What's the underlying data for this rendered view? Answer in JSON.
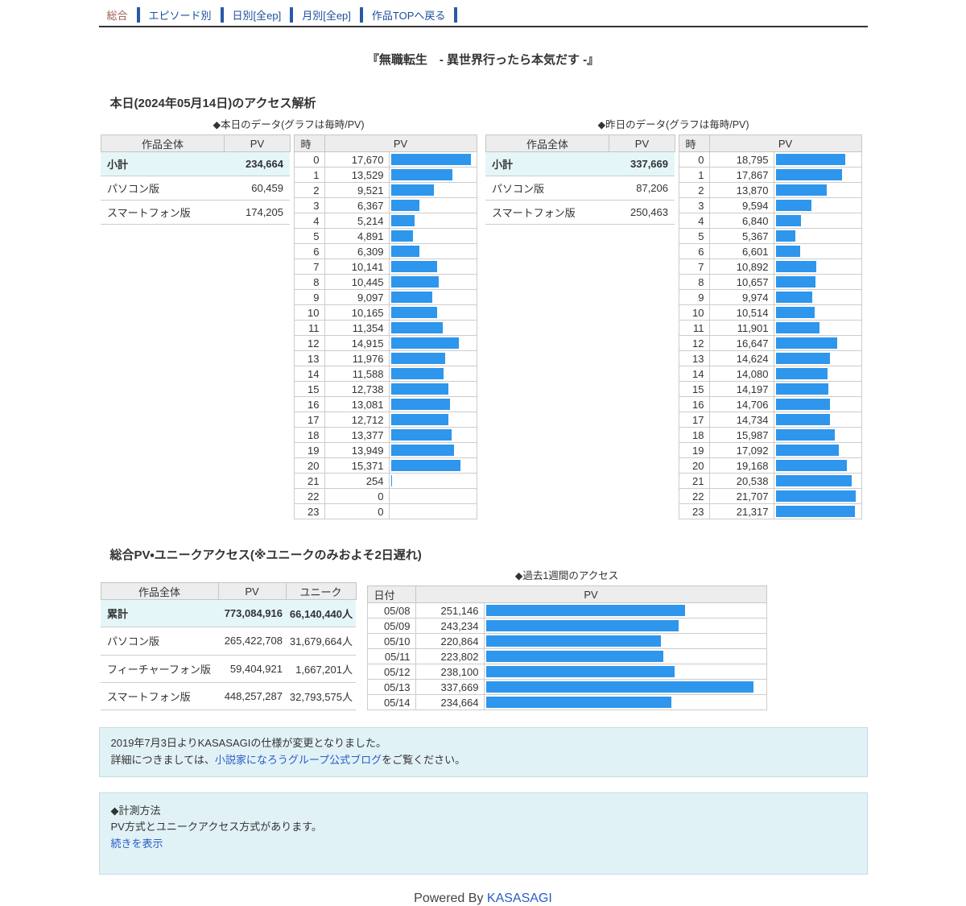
{
  "nav": {
    "items": [
      {
        "label": "総合",
        "active": true
      },
      {
        "label": "エピソード別",
        "active": false
      },
      {
        "label": "日別[全ep]",
        "active": false
      },
      {
        "label": "月別[全ep]",
        "active": false
      },
      {
        "label": "作品TOPへ戻る",
        "active": false
      }
    ]
  },
  "page_title": "『無職転生　- 異世界行ったら本気だす -』",
  "today_section": {
    "heading": "本日(2024年05月14日)のアクセス解析"
  },
  "colors": {
    "bar_blue": "#2e96ec",
    "link_blue": "#1b4e9b",
    "active_nav": "#9d5a50",
    "highlight_row": "#e5f6f8",
    "notice_bg": "#e1f2f7"
  },
  "panels": [
    {
      "subtitle": "◆本日のデータ(グラフは毎時/PV)",
      "summary": {
        "col_label": "作品全体",
        "col_value": "PV",
        "rows": [
          {
            "label": "小計",
            "value": "234,664",
            "highlight": true
          },
          {
            "label": "パソコン版",
            "value": "60,459"
          },
          {
            "label": "スマートフォン版",
            "value": "174,205"
          }
        ]
      },
      "hourly": {
        "col_hour": "時",
        "col_value": "PV",
        "rows": [
          {
            "label": "0",
            "value": "17,670"
          },
          {
            "label": "1",
            "value": "13,529"
          },
          {
            "label": "2",
            "value": "9,521"
          },
          {
            "label": "3",
            "value": "6,367"
          },
          {
            "label": "4",
            "value": "5,214"
          },
          {
            "label": "5",
            "value": "4,891"
          },
          {
            "label": "6",
            "value": "6,309"
          },
          {
            "label": "7",
            "value": "10,141"
          },
          {
            "label": "8",
            "value": "10,445"
          },
          {
            "label": "9",
            "value": "9,097"
          },
          {
            "label": "10",
            "value": "10,165"
          },
          {
            "label": "11",
            "value": "11,354"
          },
          {
            "label": "12",
            "value": "14,915"
          },
          {
            "label": "13",
            "value": "11,976"
          },
          {
            "label": "14",
            "value": "11,588"
          },
          {
            "label": "15",
            "value": "12,738"
          },
          {
            "label": "16",
            "value": "13,081"
          },
          {
            "label": "17",
            "value": "12,712"
          },
          {
            "label": "18",
            "value": "13,377"
          },
          {
            "label": "19",
            "value": "13,949"
          },
          {
            "label": "20",
            "value": "15,371"
          },
          {
            "label": "21",
            "value": "254"
          },
          {
            "label": "22",
            "value": "0"
          },
          {
            "label": "23",
            "value": "0"
          }
        ]
      }
    },
    {
      "subtitle": "◆昨日のデータ(グラフは毎時/PV)",
      "summary": {
        "col_label": "作品全体",
        "col_value": "PV",
        "rows": [
          {
            "label": "小計",
            "value": "337,669",
            "highlight": true
          },
          {
            "label": "パソコン版",
            "value": "87,206"
          },
          {
            "label": "スマートフォン版",
            "value": "250,463"
          }
        ]
      },
      "hourly": {
        "col_hour": "時",
        "col_value": "PV",
        "rows": [
          {
            "label": "0",
            "value": "18,795"
          },
          {
            "label": "1",
            "value": "17,867"
          },
          {
            "label": "2",
            "value": "13,870"
          },
          {
            "label": "3",
            "value": "9,594"
          },
          {
            "label": "4",
            "value": "6,840"
          },
          {
            "label": "5",
            "value": "5,367"
          },
          {
            "label": "6",
            "value": "6,601"
          },
          {
            "label": "7",
            "value": "10,892"
          },
          {
            "label": "8",
            "value": "10,657"
          },
          {
            "label": "9",
            "value": "9,974"
          },
          {
            "label": "10",
            "value": "10,514"
          },
          {
            "label": "11",
            "value": "11,901"
          },
          {
            "label": "12",
            "value": "16,647"
          },
          {
            "label": "13",
            "value": "14,624"
          },
          {
            "label": "14",
            "value": "14,080"
          },
          {
            "label": "15",
            "value": "14,197"
          },
          {
            "label": "16",
            "value": "14,706"
          },
          {
            "label": "17",
            "value": "14,734"
          },
          {
            "label": "18",
            "value": "15,987"
          },
          {
            "label": "19",
            "value": "17,092"
          },
          {
            "label": "20",
            "value": "19,168"
          },
          {
            "label": "21",
            "value": "20,538"
          },
          {
            "label": "22",
            "value": "21,707"
          },
          {
            "label": "23",
            "value": "21,317"
          }
        ]
      }
    }
  ],
  "totals_section": {
    "heading": "総合PV・ユニークアクセス(※ユニークのみおよそ2日遅れ)",
    "table": {
      "col_label": "作品全体",
      "col_pv": "PV",
      "col_unique": "ユニーク",
      "rows": [
        {
          "label": "累計",
          "pv": "773,084,916",
          "unique": "66,140,440人",
          "highlight": true
        },
        {
          "label": "パソコン版",
          "pv": "265,422,708",
          "unique": "31,679,664人"
        },
        {
          "label": "フィーチャーフォン版",
          "pv": "59,404,921",
          "unique": "1,667,201人"
        },
        {
          "label": "スマートフォン版",
          "pv": "448,257,287",
          "unique": "32,793,575人"
        }
      ]
    },
    "weekly": {
      "title": "◆過去1週間のアクセス",
      "col_date": "日付",
      "col_value": "PV",
      "rows": [
        {
          "label": "05/08",
          "value": "251,146"
        },
        {
          "label": "05/09",
          "value": "243,234"
        },
        {
          "label": "05/10",
          "value": "220,864"
        },
        {
          "label": "05/11",
          "value": "223,802"
        },
        {
          "label": "05/12",
          "value": "238,100"
        },
        {
          "label": "05/13",
          "value": "337,669"
        },
        {
          "label": "05/14",
          "value": "234,664"
        }
      ]
    }
  },
  "notice1": {
    "line1": "2019年7月3日よりKASASAGIの仕様が変更となりました。",
    "line2_pre": "詳細につきましては、",
    "link": "小説家になろうグループ公式ブログ",
    "line2_post": "をご覧ください。"
  },
  "notice2": {
    "heading": "◆計測方法",
    "body": "PV方式とユニークアクセス方式があります。",
    "link": "続きを表示"
  },
  "footer": {
    "pre": "Powered By ",
    "link": "KASASAGI"
  }
}
